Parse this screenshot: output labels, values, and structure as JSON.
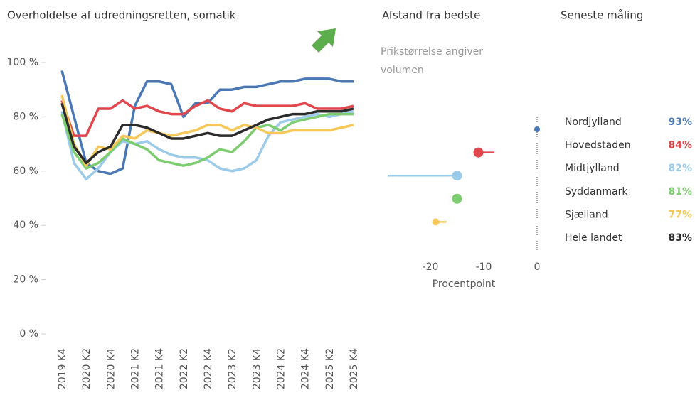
{
  "chart_data": [
    {
      "type": "line",
      "title": "Overholdelse af udredningsretten, somatik",
      "categories": [
        "2019 K4",
        null,
        "2020 K2",
        null,
        "2020 K4",
        null,
        "2021 K2",
        null,
        "2021 K4",
        null,
        "2022 K2",
        null,
        "2022 K4",
        null,
        "2023 K2",
        null,
        "2023 K4",
        null,
        "2024 K2",
        null,
        "2024 K4",
        null,
        "2025 K2",
        null,
        "2025 K4"
      ],
      "ylim": [
        0,
        100
      ],
      "yticks": [
        {
          "value": 0,
          "label": "0 %"
        },
        {
          "value": 20,
          "label": "20 %"
        },
        {
          "value": 40,
          "label": "40 %"
        },
        {
          "value": 60,
          "label": "60 %"
        },
        {
          "value": 80,
          "label": "80 %"
        },
        {
          "value": 100,
          "label": "100 %"
        }
      ],
      "series": [
        {
          "name": "Nordjylland",
          "color": "#4a78b5",
          "values": [
            97,
            80,
            63,
            60,
            59,
            61,
            84,
            93,
            93,
            92,
            80,
            85,
            85,
            90,
            90,
            91,
            91,
            92,
            93,
            93,
            94,
            94,
            94,
            93,
            93
          ]
        },
        {
          "name": "Hovedstaden",
          "color": "#e0474c",
          "values": [
            86,
            73,
            73,
            83,
            83,
            86,
            83,
            84,
            82,
            81,
            81,
            84,
            86,
            83,
            82,
            85,
            84,
            84,
            84,
            84,
            85,
            83,
            83,
            83,
            84
          ]
        },
        {
          "name": "Midtjylland",
          "color": "#9ccbea",
          "values": [
            82,
            63,
            57,
            61,
            67,
            71,
            70,
            71,
            68,
            66,
            65,
            65,
            64,
            61,
            60,
            61,
            64,
            73,
            78,
            79,
            80,
            81,
            80,
            81,
            82
          ]
        },
        {
          "name": "Syddanmark",
          "color": "#7dcc6f",
          "values": [
            81,
            67,
            61,
            63,
            67,
            72,
            70,
            68,
            64,
            63,
            62,
            63,
            65,
            68,
            67,
            71,
            76,
            77,
            75,
            78,
            79,
            80,
            81,
            81,
            81
          ]
        },
        {
          "name": "Sjælland",
          "color": "#f5c859",
          "values": [
            88,
            70,
            62,
            69,
            68,
            73,
            72,
            75,
            74,
            73,
            74,
            75,
            77,
            77,
            75,
            77,
            76,
            74,
            74,
            75,
            75,
            75,
            75,
            76,
            77
          ]
        },
        {
          "name": "Hele landet",
          "color": "#2b2b2b",
          "values": [
            85,
            69,
            63,
            67,
            69,
            77,
            77,
            76,
            74,
            72,
            72,
            73,
            74,
            73,
            73,
            75,
            77,
            79,
            80,
            81,
            81,
            82,
            82,
            82,
            83
          ]
        }
      ]
    },
    {
      "type": "dot",
      "title": "Afstand fra bedste",
      "subtitle": "Prikstørrelse angiver volumen",
      "xlabel": "Procentpoint",
      "xlim": [
        -28,
        2
      ],
      "xticks": [
        -20,
        -10,
        0
      ],
      "values": [
        0,
        -11,
        -15,
        -15,
        -19,
        null
      ],
      "previous": [
        null,
        -8,
        -28,
        null,
        -17,
        null
      ],
      "sizes": [
        4,
        7,
        7,
        7,
        5,
        null
      ]
    },
    {
      "type": "list",
      "title": "Seneste måling",
      "values": [
        93,
        84,
        82,
        81,
        77,
        83
      ],
      "value_labels": [
        "93%",
        "84%",
        "82%",
        "81%",
        "77%",
        "83%"
      ]
    }
  ]
}
